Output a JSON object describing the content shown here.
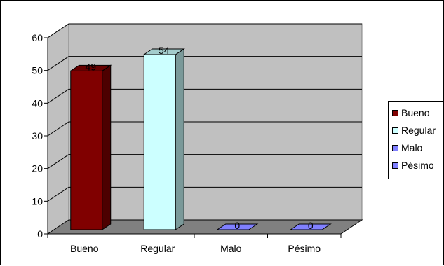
{
  "chart_data": {
    "type": "bar",
    "categories": [
      "Bueno",
      "Regular",
      "Malo",
      "Pésimo"
    ],
    "values": [
      49,
      54,
      0,
      0
    ],
    "colors": [
      "#800000",
      "#ccffff",
      "#8080ff",
      "#8080ff"
    ],
    "title": "",
    "xlabel": "",
    "ylabel": "",
    "ylim": [
      0,
      60
    ],
    "yticks": [
      "0",
      "10",
      "20",
      "30",
      "40",
      "50",
      "60"
    ],
    "data_labels": [
      "49",
      "54",
      "0",
      "0"
    ],
    "grid": true,
    "style": "3d",
    "legend": {
      "position": "right",
      "entries": [
        "Bueno",
        "Regular",
        "Malo",
        "Pésimo"
      ]
    }
  }
}
